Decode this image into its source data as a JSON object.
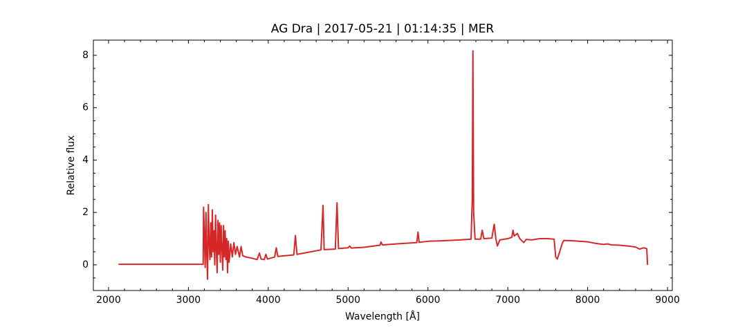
{
  "chart_data": {
    "type": "line",
    "title": "AG Dra | 2017-05-21 | 01:14:35 | MER",
    "x_label": "Wavelength [Å]",
    "y_label": "Relative flux",
    "xlim": [
      1810,
      9060
    ],
    "ylim": [
      -0.98,
      8.58
    ],
    "xticks": [
      2000,
      3000,
      4000,
      5000,
      6000,
      7000,
      8000,
      9000
    ],
    "yticks": [
      0,
      2,
      4,
      6,
      8
    ],
    "xminorticks": [
      2200,
      2400,
      2600,
      2800,
      3200,
      3400,
      3600,
      3800,
      4200,
      4400,
      4600,
      4800,
      5200,
      5400,
      5600,
      5800,
      6200,
      6400,
      6600,
      6800,
      7200,
      7400,
      7600,
      7800,
      8200,
      8400,
      8600,
      8800
    ],
    "yminorticks": [
      -0.5,
      0.5,
      1,
      1.5,
      2.5,
      3,
      3.5,
      4.5,
      5,
      5.5,
      6.5,
      7,
      7.5
    ],
    "grid": false,
    "series": [
      {
        "name": "AG Dra",
        "color": "#d62728",
        "x": [
          2125,
          3185,
          3190,
          3200,
          3210,
          3220,
          3230,
          3240,
          3250,
          3260,
          3270,
          3280,
          3290,
          3300,
          3310,
          3320,
          3330,
          3340,
          3350,
          3360,
          3370,
          3380,
          3390,
          3400,
          3410,
          3420,
          3430,
          3440,
          3450,
          3460,
          3470,
          3480,
          3490,
          3500,
          3510,
          3530,
          3550,
          3570,
          3590,
          3610,
          3640,
          3660,
          3680,
          3720,
          3800,
          3860,
          3890,
          3910,
          3950,
          3970,
          3990,
          4080,
          4100,
          4120,
          4320,
          4340,
          4360,
          4500,
          4660,
          4686,
          4700,
          4840,
          4861,
          4880,
          5000,
          5020,
          5040,
          5200,
          5400,
          5412,
          5430,
          5600,
          5860,
          5876,
          5890,
          6000,
          6200,
          6400,
          6540,
          6555,
          6563,
          6572,
          6590,
          6660,
          6680,
          6700,
          6800,
          6830,
          6850,
          6870,
          6900,
          7000,
          7050,
          7065,
          7080,
          7120,
          7150,
          7200,
          7230,
          7300,
          7400,
          7500,
          7580,
          7600,
          7620,
          7650,
          7680,
          7700,
          7800,
          8000,
          8100,
          8200,
          8250,
          8300,
          8400,
          8500,
          8600,
          8650,
          8700,
          8740,
          8750
        ],
        "values": [
          0.02,
          0.02,
          2.2,
          1.2,
          -0.1,
          2.0,
          0.4,
          -0.55,
          2.3,
          0.8,
          0.2,
          1.6,
          0.3,
          2.1,
          0.5,
          1.3,
          0.0,
          1.9,
          0.6,
          -0.3,
          1.7,
          0.4,
          1.6,
          0.1,
          1.5,
          0.6,
          -0.2,
          1.5,
          0.3,
          1.3,
          0.2,
          1.0,
          -0.3,
          0.9,
          0.1,
          0.8,
          0.3,
          0.85,
          0.4,
          0.7,
          0.3,
          0.7,
          0.35,
          0.3,
          0.25,
          0.2,
          0.45,
          0.22,
          0.2,
          0.4,
          0.22,
          0.3,
          0.65,
          0.32,
          0.38,
          1.12,
          0.4,
          0.48,
          0.57,
          2.27,
          0.58,
          0.6,
          2.37,
          0.62,
          0.65,
          0.72,
          0.64,
          0.67,
          0.75,
          0.87,
          0.76,
          0.8,
          0.85,
          1.25,
          0.86,
          0.9,
          0.92,
          0.95,
          0.98,
          2.5,
          8.17,
          2.0,
          0.98,
          0.98,
          1.32,
          1.0,
          1.02,
          1.55,
          1.0,
          0.72,
          0.95,
          1.0,
          1.05,
          1.32,
          1.1,
          1.2,
          1.0,
          0.85,
          0.97,
          0.95,
          1.0,
          1.0,
          0.98,
          0.3,
          0.22,
          0.5,
          0.8,
          0.93,
          0.92,
          0.88,
          0.82,
          0.78,
          0.8,
          0.76,
          0.75,
          0.72,
          0.68,
          0.6,
          0.65,
          0.62,
          0.0
        ]
      }
    ]
  }
}
